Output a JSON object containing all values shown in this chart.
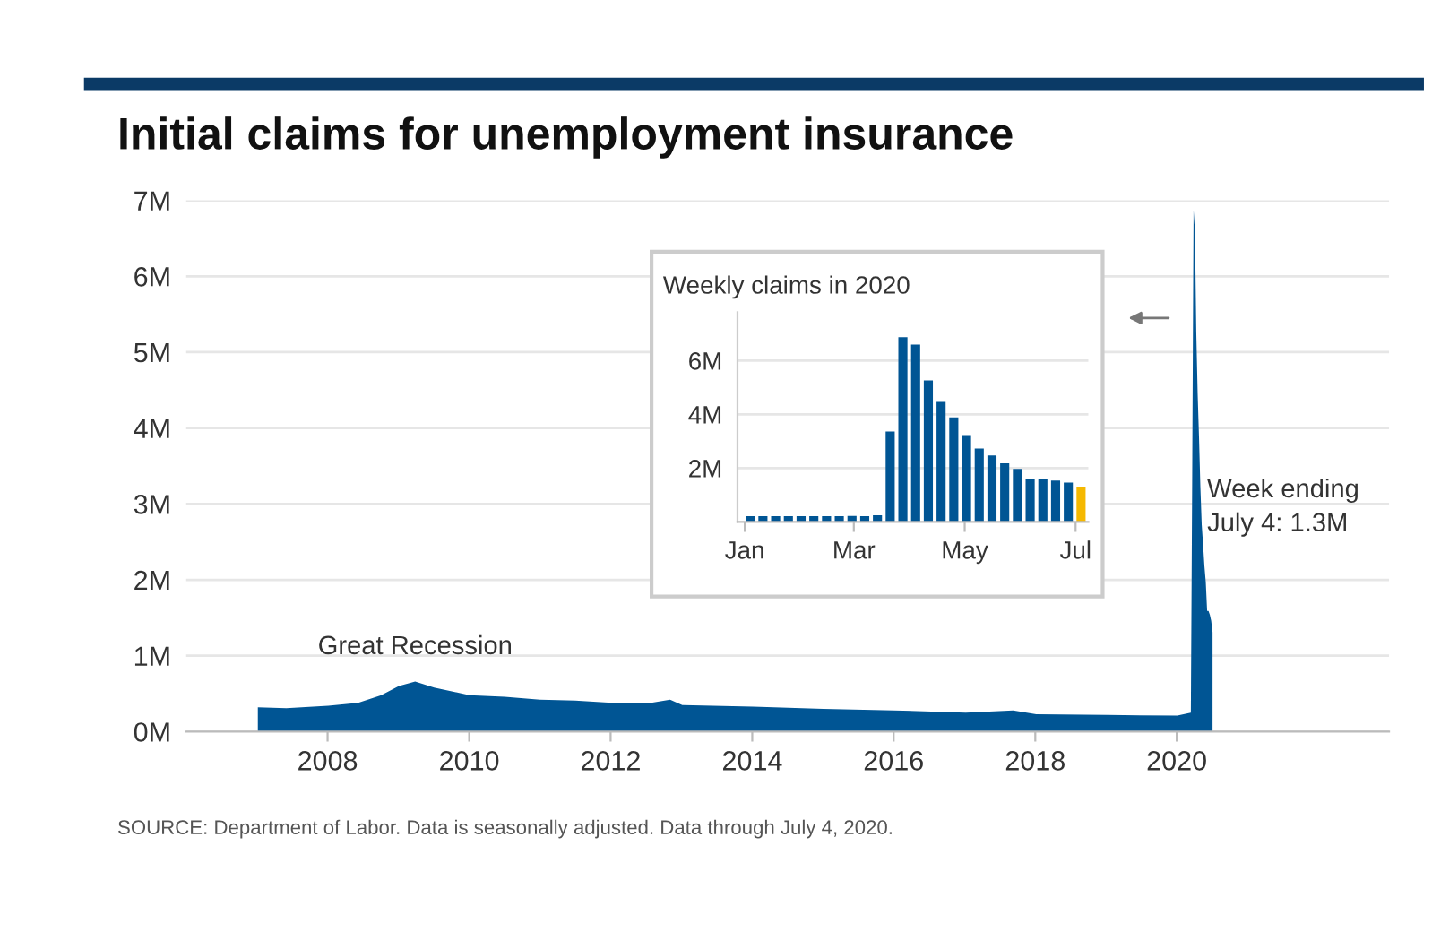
{
  "chart_data": [
    {
      "type": "area",
      "title": "Initial claims for unemployment insurance",
      "x": [
        "2007-01-06",
        "2007-06-02",
        "2008-01-05",
        "2008-06-07",
        "2008-10-04",
        "2009-01-03",
        "2009-03-28",
        "2009-07-04",
        "2010-01-02",
        "2010-07-03",
        "2011-01-01",
        "2011-07-02",
        "2012-01-07",
        "2012-07-07",
        "2012-11-03",
        "2013-01-05",
        "2014-01-04",
        "2015-01-03",
        "2016-01-02",
        "2017-01-07",
        "2017-09-09",
        "2018-01-06",
        "2019-01-05",
        "2020-01-04",
        "2020-03-14",
        "2020-03-21",
        "2020-03-28",
        "2020-04-04",
        "2020-04-11",
        "2020-04-18",
        "2020-04-25",
        "2020-05-02",
        "2020-05-09",
        "2020-05-16",
        "2020-05-23",
        "2020-05-30",
        "2020-06-06",
        "2020-06-13",
        "2020-06-20",
        "2020-06-27",
        "2020-07-04"
      ],
      "series": [
        {
          "color": "#005594",
          "values": [
            0.32,
            0.31,
            0.34,
            0.38,
            0.48,
            0.6,
            0.66,
            0.58,
            0.48,
            0.46,
            0.42,
            0.41,
            0.38,
            0.37,
            0.42,
            0.35,
            0.33,
            0.3,
            0.28,
            0.25,
            0.28,
            0.23,
            0.22,
            0.21,
            0.25,
            3.36,
            6.87,
            6.6,
            5.26,
            4.46,
            3.89,
            3.23,
            2.73,
            2.47,
            2.18,
            1.97,
            1.59,
            1.59,
            1.54,
            1.46,
            1.31
          ]
        }
      ],
      "xlim": [
        "2006-01-01",
        "2023-01-01"
      ],
      "xticks": [
        {
          "value": "2008-01-01",
          "label": "2008"
        },
        {
          "value": "2010-01-01",
          "label": "2010"
        },
        {
          "value": "2012-01-01",
          "label": "2012"
        },
        {
          "value": "2014-01-01",
          "label": "2014"
        },
        {
          "value": "2016-01-01",
          "label": "2016"
        },
        {
          "value": "2018-01-01",
          "label": "2018"
        },
        {
          "value": "2020-01-01",
          "label": "2020"
        }
      ],
      "ylim": [
        0,
        7
      ],
      "yticks": [
        {
          "value": 0,
          "label": "0M"
        },
        {
          "value": 1,
          "label": "1M"
        },
        {
          "value": 2,
          "label": "2M"
        },
        {
          "value": 3,
          "label": "3M"
        },
        {
          "value": 4,
          "label": "4M"
        },
        {
          "value": 5,
          "label": "5M"
        },
        {
          "value": 6,
          "label": "6M"
        },
        {
          "value": 7,
          "label": "7M"
        }
      ],
      "grid": "y",
      "annotations": [
        {
          "text": "Great Recession",
          "x": "2009-03-28",
          "y": 0.66
        },
        "Week ending\nJuly 4: 1.3M",
        "SOURCE: Department of Labor. Data is seasonally adjusted. Data through July 4, 2020."
      ]
    },
    {
      "type": "bar",
      "title": "Weekly claims in 2020",
      "x": [
        "2020-01-04",
        "2020-01-11",
        "2020-01-18",
        "2020-01-25",
        "2020-02-01",
        "2020-02-08",
        "2020-02-15",
        "2020-02-22",
        "2020-02-29",
        "2020-03-07",
        "2020-03-14",
        "2020-03-21",
        "2020-03-28",
        "2020-04-04",
        "2020-04-11",
        "2020-04-18",
        "2020-04-25",
        "2020-05-02",
        "2020-05-09",
        "2020-05-16",
        "2020-05-23",
        "2020-05-30",
        "2020-06-06",
        "2020-06-13",
        "2020-06-20",
        "2020-06-27",
        "2020-07-04"
      ],
      "values": [
        0.21,
        0.21,
        0.21,
        0.21,
        0.21,
        0.21,
        0.21,
        0.21,
        0.22,
        0.21,
        0.25,
        3.36,
        6.87,
        6.6,
        5.26,
        4.46,
        3.89,
        3.23,
        2.73,
        2.47,
        2.18,
        1.97,
        1.59,
        1.59,
        1.54,
        1.46,
        1.31
      ],
      "colors": [
        "#005594",
        "#005594",
        "#005594",
        "#005594",
        "#005594",
        "#005594",
        "#005594",
        "#005594",
        "#005594",
        "#005594",
        "#005594",
        "#005594",
        "#005594",
        "#005594",
        "#005594",
        "#005594",
        "#005594",
        "#005594",
        "#005594",
        "#005594",
        "#005594",
        "#005594",
        "#005594",
        "#005594",
        "#005594",
        "#005594",
        "#f5b800"
      ],
      "xlim": [
        "2019-12-28",
        "2020-07-08"
      ],
      "xticks": [
        {
          "value": "2020-01-01",
          "label": "Jan"
        },
        {
          "value": "2020-03-01",
          "label": "Mar"
        },
        {
          "value": "2020-05-01",
          "label": "May"
        },
        {
          "value": "2020-07-01",
          "label": "Jul"
        }
      ],
      "ylim": [
        0,
        7.8
      ],
      "yticks": [
        {
          "value": 2,
          "label": "2M"
        },
        {
          "value": 4,
          "label": "4M"
        },
        {
          "value": 6,
          "label": "6M"
        }
      ],
      "grid": "y"
    }
  ]
}
